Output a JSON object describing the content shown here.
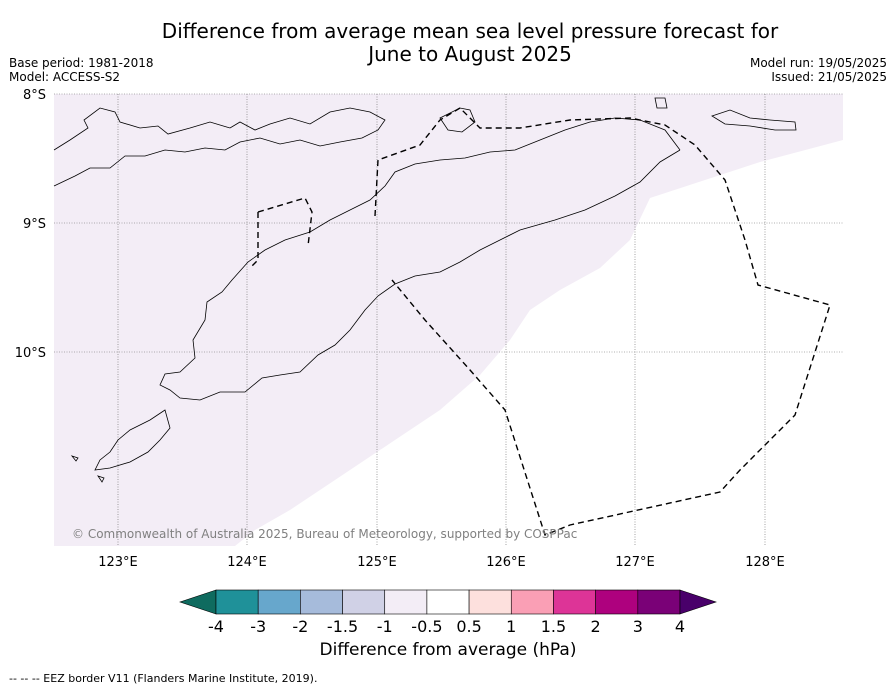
{
  "title_line1": "Difference from average mean sea level pressure forecast for",
  "title_line2": "June to August 2025",
  "meta_left": {
    "base_period": "Base period: 1981-2018",
    "model": "Model: ACCESS-S2"
  },
  "meta_right": {
    "model_run": "Model run: 19/05/2025",
    "issued": "Issued: 21/05/2025"
  },
  "map": {
    "lat_labels": [
      "8°S",
      "9°S",
      "10°S"
    ],
    "lon_labels": [
      "123°E",
      "124°E",
      "125°E",
      "126°E",
      "127°E",
      "128°E"
    ],
    "copyright": "© Commonwealth of Australia 2025, Bureau of Meteorology, supported by COSPPac",
    "shaded_category": "-1 to -0.5",
    "shade_color": "#f3edf6"
  },
  "colorbar": {
    "label": "Difference from average (hPa)",
    "ticks": [
      "-4",
      "-3",
      "-2",
      "-1.5",
      "-1",
      "-0.5",
      "0.5",
      "1",
      "1.5",
      "2",
      "3",
      "4"
    ],
    "colors": [
      "#0f6b5f",
      "#1f9199",
      "#67a7cc",
      "#a6bbdb",
      "#d0d1e6",
      "#f3edf6",
      "#ffffff",
      "#fde0dd",
      "#fa9fb5",
      "#dd3497",
      "#ae017e",
      "#7a0177",
      "#49006a"
    ]
  },
  "footnote": "--  --  -- EEZ border V11 (Flanders Marine Institute, 2019)."
}
